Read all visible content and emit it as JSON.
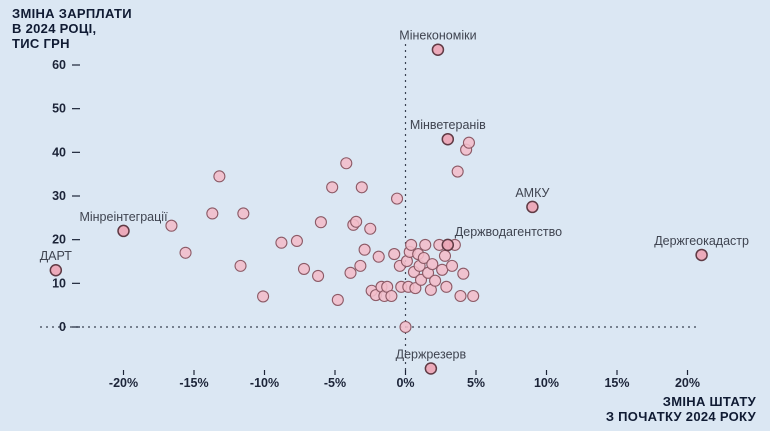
{
  "title": {
    "line1": "ЗМІНА ЗАРПЛАТИ",
    "line2": "В 2024 РОЦІ,",
    "line3": "ТИС ГРН"
  },
  "x_axis_label": {
    "line1": "ЗМІНА ШТАТУ",
    "line2": "З ПОЧАТКУ 2024 РОКУ"
  },
  "colors": {
    "background": "#dbe7f3",
    "point_fill": "#f3bdc9",
    "point_stroke": "#8c5a66",
    "labeled_point_fill": "#eda7b6",
    "labeled_point_stroke": "#5f3a44",
    "axis_text": "#1c2438",
    "annotation_text": "#3f4450"
  },
  "chart_data": {
    "type": "scatter",
    "title": "ЗМІНА ЗАРПЛАТИ В 2024 РОЦІ, ТИС ГРН",
    "xlabel": "ЗМІНА ШТАТУ З ПОЧАТКУ 2024 РОКУ",
    "ylabel": "ЗМІНА ЗАРПЛАТИ В 2024 РОЦІ, ТИС ГРН",
    "x_ticks": [
      "-20%",
      "-15%",
      "-10%",
      "-5%",
      "0%",
      "5%",
      "10%",
      "15%",
      "20%"
    ],
    "x_tick_values": [
      -20,
      -15,
      -10,
      -5,
      0,
      5,
      10,
      15,
      20
    ],
    "y_ticks": [
      0,
      10,
      20,
      30,
      40,
      50,
      60
    ],
    "xlim": [
      -26,
      25
    ],
    "ylim": [
      -12,
      66
    ],
    "grid": false,
    "reference_lines": {
      "x": 0,
      "y": 0
    },
    "legend": "none",
    "labeled_points": [
      {
        "label": "Мінекономіки",
        "x": 2.3,
        "y": 63.5,
        "label_pos": "above"
      },
      {
        "label": "Мінветеранів",
        "x": 3.0,
        "y": 43.0,
        "label_pos": "above"
      },
      {
        "label": "АМКУ",
        "x": 9.0,
        "y": 27.5,
        "label_pos": "above"
      },
      {
        "label": "Держводагентство",
        "x": 3.0,
        "y": 18.8,
        "label_pos": "above-right"
      },
      {
        "label": "Держгеокадастр",
        "x": 21.0,
        "y": 16.5,
        "label_pos": "above"
      },
      {
        "label": "Мінреінтеграції",
        "x": -20.0,
        "y": 22.0,
        "label_pos": "above"
      },
      {
        "label": "ДАРТ",
        "x": -24.8,
        "y": 13.0,
        "label_pos": "above"
      },
      {
        "label": "Держрезерв",
        "x": 1.8,
        "y": -9.5,
        "label_pos": "above"
      }
    ],
    "points": [
      [
        -16.6,
        23.2
      ],
      [
        -15.6,
        17.0
      ],
      [
        -13.7,
        26.0
      ],
      [
        -13.2,
        34.5
      ],
      [
        -11.7,
        14.0
      ],
      [
        -11.5,
        26.0
      ],
      [
        -10.1,
        7.0
      ],
      [
        -8.8,
        19.3
      ],
      [
        -7.7,
        19.7
      ],
      [
        -7.2,
        13.3
      ],
      [
        -6.2,
        11.7
      ],
      [
        -6.0,
        24.0
      ],
      [
        -5.2,
        32.0
      ],
      [
        -4.8,
        6.2
      ],
      [
        -4.2,
        37.5
      ],
      [
        -3.9,
        12.4
      ],
      [
        -3.7,
        23.4
      ],
      [
        -3.5,
        24.1
      ],
      [
        -3.2,
        14.0
      ],
      [
        -3.1,
        32.0
      ],
      [
        -2.9,
        17.7
      ],
      [
        -2.5,
        22.5
      ],
      [
        -2.4,
        8.3
      ],
      [
        -2.1,
        7.3
      ],
      [
        -1.9,
        16.1
      ],
      [
        -1.7,
        9.2
      ],
      [
        -1.5,
        7.1
      ],
      [
        -1.3,
        9.2
      ],
      [
        -1.0,
        7.1
      ],
      [
        -0.8,
        16.7
      ],
      [
        -0.6,
        29.4
      ],
      [
        -0.4,
        14.0
      ],
      [
        -0.3,
        9.2
      ],
      [
        0.0,
        0.0
      ],
      [
        0.1,
        15.1
      ],
      [
        0.2,
        9.2
      ],
      [
        0.3,
        17.2
      ],
      [
        0.4,
        18.8
      ],
      [
        0.6,
        12.6
      ],
      [
        0.7,
        8.9
      ],
      [
        0.9,
        16.7
      ],
      [
        1.0,
        14.0
      ],
      [
        1.1,
        10.8
      ],
      [
        1.3,
        15.8
      ],
      [
        1.4,
        18.8
      ],
      [
        1.6,
        12.4
      ],
      [
        1.8,
        8.5
      ],
      [
        1.9,
        14.4
      ],
      [
        2.1,
        10.6
      ],
      [
        2.4,
        18.8
      ],
      [
        2.6,
        13.1
      ],
      [
        2.8,
        16.3
      ],
      [
        2.9,
        9.2
      ],
      [
        3.3,
        14.0
      ],
      [
        3.5,
        18.8
      ],
      [
        3.7,
        35.6
      ],
      [
        3.9,
        7.1
      ],
      [
        4.1,
        12.2
      ],
      [
        4.3,
        40.6
      ],
      [
        4.5,
        42.2
      ],
      [
        4.8,
        7.1
      ]
    ]
  }
}
